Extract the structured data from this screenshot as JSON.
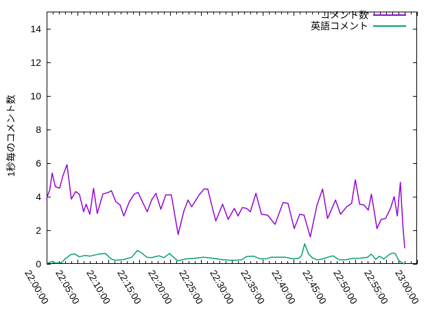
{
  "chart_data": {
    "type": "line",
    "title": "",
    "xlabel": "",
    "ylabel": "1秒毎のコメント数",
    "x_axis": {
      "unit": "time (HH:MM:SS)",
      "start": "22:00:00",
      "end": "23:00:00",
      "major_tick_interval_minutes": 5,
      "minor_tick_interval_minutes": 1,
      "tick_labels": [
        "22:00:00",
        "22:05:00",
        "22:10:00",
        "22:15:00",
        "22:20:00",
        "22:25:00",
        "22:30:00",
        "22:35:00",
        "22:40:00",
        "22:45:00",
        "22:50:00",
        "22:55:00",
        "23:00:00"
      ]
    },
    "y_axis": {
      "tick_values": [
        0,
        2,
        4,
        6,
        8,
        10,
        12,
        14
      ],
      "ylim": [
        0,
        15
      ]
    },
    "xlim_minutes": [
      0,
      60
    ],
    "grid": "off",
    "legend_position": "top-right-inside",
    "series": [
      {
        "name": "コメント数",
        "color": "#9400d3",
        "points": [
          [
            0,
            3.9
          ],
          [
            0.5,
            4.4
          ],
          [
            0.9,
            5.4
          ],
          [
            1.4,
            4.6
          ],
          [
            2.1,
            4.5
          ],
          [
            2.6,
            5.2
          ],
          [
            3.3,
            5.9
          ],
          [
            4.0,
            3.85
          ],
          [
            4.7,
            4.3
          ],
          [
            5.3,
            4.15
          ],
          [
            6.0,
            3.1
          ],
          [
            6.4,
            3.55
          ],
          [
            7.0,
            2.95
          ],
          [
            7.6,
            4.5
          ],
          [
            8.2,
            3.0
          ],
          [
            9.1,
            4.15
          ],
          [
            10.0,
            4.25
          ],
          [
            10.5,
            4.35
          ],
          [
            11.2,
            3.7
          ],
          [
            11.9,
            3.5
          ],
          [
            12.5,
            2.85
          ],
          [
            13.4,
            3.7
          ],
          [
            14.2,
            4.15
          ],
          [
            14.8,
            4.25
          ],
          [
            15.5,
            3.7
          ],
          [
            16.3,
            3.1
          ],
          [
            17.0,
            3.8
          ],
          [
            17.7,
            4.2
          ],
          [
            18.5,
            3.25
          ],
          [
            19.3,
            4.1
          ],
          [
            20.2,
            4.1
          ],
          [
            21.3,
            1.75
          ],
          [
            22.2,
            3.1
          ],
          [
            22.9,
            3.8
          ],
          [
            23.5,
            3.4
          ],
          [
            24.7,
            4.1
          ],
          [
            25.5,
            4.45
          ],
          [
            26.1,
            4.45
          ],
          [
            26.8,
            3.4
          ],
          [
            27.4,
            2.55
          ],
          [
            28.5,
            3.55
          ],
          [
            29.4,
            2.65
          ],
          [
            30.4,
            3.3
          ],
          [
            31.0,
            2.85
          ],
          [
            31.7,
            3.35
          ],
          [
            32.4,
            3.3
          ],
          [
            33.0,
            3.1
          ],
          [
            33.9,
            4.2
          ],
          [
            34.8,
            2.95
          ],
          [
            35.8,
            2.9
          ],
          [
            37.0,
            2.35
          ],
          [
            38.3,
            3.65
          ],
          [
            39.1,
            3.6
          ],
          [
            40.1,
            2.1
          ],
          [
            41.0,
            2.95
          ],
          [
            41.7,
            2.9
          ],
          [
            42.7,
            1.6
          ],
          [
            43.8,
            3.5
          ],
          [
            44.7,
            4.45
          ],
          [
            45.5,
            2.7
          ],
          [
            46.8,
            3.8
          ],
          [
            47.6,
            2.95
          ],
          [
            48.6,
            3.4
          ],
          [
            49.4,
            3.6
          ],
          [
            50.0,
            5.0
          ],
          [
            50.7,
            3.55
          ],
          [
            51.4,
            3.5
          ],
          [
            52.1,
            3.2
          ],
          [
            52.6,
            4.15
          ],
          [
            53.1,
            3.05
          ],
          [
            53.5,
            2.1
          ],
          [
            54.2,
            2.65
          ],
          [
            54.9,
            2.7
          ],
          [
            55.7,
            3.3
          ],
          [
            56.3,
            4.0
          ],
          [
            56.8,
            2.85
          ],
          [
            57.3,
            4.85
          ],
          [
            57.7,
            2.3
          ],
          [
            58.0,
            0.95
          ]
        ]
      },
      {
        "name": "英語コメント",
        "color": "#009e73",
        "points": [
          [
            0,
            0.02
          ],
          [
            0.9,
            0.15
          ],
          [
            1.5,
            0.05
          ],
          [
            2.4,
            0.07
          ],
          [
            3.0,
            0.3
          ],
          [
            3.9,
            0.55
          ],
          [
            4.5,
            0.6
          ],
          [
            5.3,
            0.42
          ],
          [
            6.2,
            0.5
          ],
          [
            7.0,
            0.46
          ],
          [
            8.4,
            0.58
          ],
          [
            9.5,
            0.62
          ],
          [
            10.5,
            0.28
          ],
          [
            11.1,
            0.22
          ],
          [
            12.4,
            0.25
          ],
          [
            13.8,
            0.4
          ],
          [
            14.7,
            0.8
          ],
          [
            15.4,
            0.65
          ],
          [
            16.2,
            0.4
          ],
          [
            17.0,
            0.37
          ],
          [
            18.2,
            0.48
          ],
          [
            19.0,
            0.37
          ],
          [
            19.9,
            0.62
          ],
          [
            21.2,
            0.18
          ],
          [
            22.6,
            0.3
          ],
          [
            24.0,
            0.33
          ],
          [
            25.4,
            0.4
          ],
          [
            26.5,
            0.35
          ],
          [
            27.5,
            0.3
          ],
          [
            28.5,
            0.25
          ],
          [
            29.5,
            0.22
          ],
          [
            30.7,
            0.22
          ],
          [
            31.6,
            0.25
          ],
          [
            32.4,
            0.44
          ],
          [
            33.5,
            0.46
          ],
          [
            34.6,
            0.3
          ],
          [
            35.6,
            0.3
          ],
          [
            36.4,
            0.4
          ],
          [
            37.5,
            0.4
          ],
          [
            38.6,
            0.4
          ],
          [
            39.9,
            0.3
          ],
          [
            40.8,
            0.33
          ],
          [
            41.3,
            0.5
          ],
          [
            41.8,
            1.2
          ],
          [
            42.4,
            0.6
          ],
          [
            43.0,
            0.37
          ],
          [
            43.8,
            0.24
          ],
          [
            44.5,
            0.28
          ],
          [
            45.6,
            0.4
          ],
          [
            46.4,
            0.48
          ],
          [
            47.4,
            0.24
          ],
          [
            48.5,
            0.25
          ],
          [
            49.7,
            0.33
          ],
          [
            50.8,
            0.34
          ],
          [
            52.0,
            0.4
          ],
          [
            52.6,
            0.58
          ],
          [
            53.3,
            0.27
          ],
          [
            53.9,
            0.46
          ],
          [
            54.6,
            0.29
          ],
          [
            55.5,
            0.56
          ],
          [
            56.1,
            0.65
          ],
          [
            56.5,
            0.6
          ],
          [
            57.0,
            0.22
          ],
          [
            57.5,
            0.08
          ],
          [
            57.9,
            0.01
          ]
        ]
      }
    ],
    "colors": {
      "axis": "#000000",
      "background": "#ffffff",
      "series_comments": "#9400d3",
      "series_english_comments": "#009e73"
    }
  }
}
